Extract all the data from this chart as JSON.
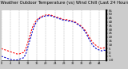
{
  "title": "Milwaukee Weather Outdoor Temperature (vs) Wind Chill (Last 24 Hours)",
  "title_fontsize": 3.8,
  "bg_color": "#cccccc",
  "plot_bg_color": "#ffffff",
  "line1_color": "#ff0000",
  "line2_color": "#0000cc",
  "line_width": 0.8,
  "ylim": [
    -10,
    55
  ],
  "yticks": [
    -10,
    -5,
    0,
    5,
    10,
    15,
    20,
    25,
    30,
    35,
    40,
    45,
    50,
    55
  ],
  "ytick_labels": [
    "-10",
    "-5",
    "0",
    "5",
    "10",
    "15",
    "20",
    "25",
    "30",
    "35",
    "40",
    "45",
    "50",
    "55"
  ],
  "grid_color": "#999999",
  "num_points": 48,
  "x_start": 0,
  "x_end": 47,
  "temp_values": [
    5,
    4,
    3,
    2,
    1,
    0,
    -1,
    -2,
    -2,
    -1,
    0,
    5,
    14,
    24,
    33,
    39,
    43,
    45,
    47,
    48,
    49,
    49,
    49,
    48,
    47,
    46,
    45,
    44,
    43,
    43,
    42,
    42,
    41,
    40,
    38,
    36,
    34,
    31,
    27,
    22,
    17,
    13,
    10,
    8,
    6,
    5,
    6,
    7
  ],
  "windchill_values": [
    -5,
    -6,
    -7,
    -8,
    -9,
    -10,
    -10,
    -10,
    -9,
    -8,
    -7,
    -2,
    8,
    18,
    28,
    36,
    41,
    44,
    46,
    47,
    48,
    48,
    48,
    47,
    46,
    45,
    44,
    43,
    42,
    42,
    41,
    41,
    40,
    39,
    37,
    35,
    33,
    29,
    25,
    19,
    14,
    9,
    6,
    4,
    3,
    2,
    3,
    2
  ],
  "xtick_positions": [
    0,
    4,
    8,
    12,
    16,
    20,
    24,
    28,
    32,
    36,
    40,
    44,
    47
  ],
  "xtick_labels": [
    "0",
    "4",
    "8",
    "12",
    "16",
    "20",
    "24",
    "28",
    "32",
    "36",
    "40",
    "44",
    ""
  ]
}
